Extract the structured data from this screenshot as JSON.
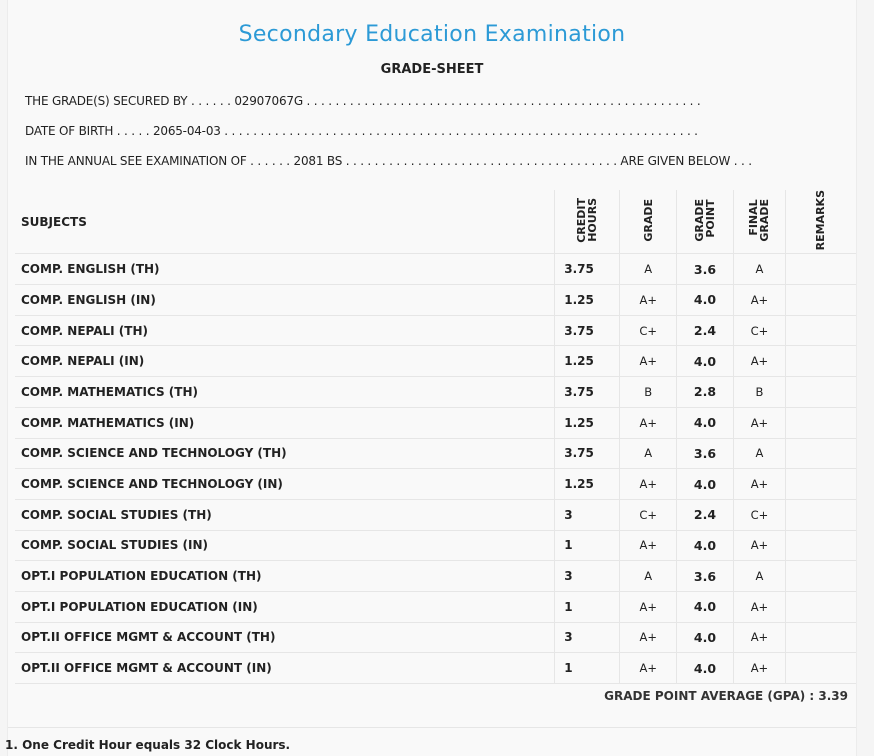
{
  "header": {
    "title": "Secondary Education Examination",
    "subtitle": "GRADE-SHEET"
  },
  "info": {
    "line1": "THE GRADE(S) SECURED BY . . . . . . 02907067G . . . . . . . . . . . . . . . . . . . . . . . . . . . . . . . . . . . . . . . . . . . . . . . . . . . . . . .",
    "line2": "DATE OF BIRTH . . . . . 2065-04-03 . . . . . . . . . . . . . . . . . . . . . . . . . . . . . . . . . . . . . . . . . . . . . . . . . . . . . . . . . . . . . . . . . .",
    "line3": "IN THE ANNUAL SEE EXAMINATION OF . . . . . . 2081 BS . . . . . . . . . . . . . . . . . . . . . . . . . . . . . . . . . . . . . . ARE GIVEN BELOW . . ."
  },
  "table": {
    "headers": {
      "subjects": "SUBJECTS",
      "credit_hours": "CREDIT\nHOURS",
      "grade": "GRADE",
      "grade_point": "GRADE\nPOINT",
      "final_grade": "FINAL\nGRADE",
      "remarks": "REMARKS"
    },
    "rows": [
      {
        "subject": "COMP. ENGLISH (TH)",
        "credit": "3.75",
        "grade": "A",
        "gp": "3.6",
        "final": "A",
        "remarks": ""
      },
      {
        "subject": "COMP. ENGLISH (IN)",
        "credit": "1.25",
        "grade": "A+",
        "gp": "4.0",
        "final": "A+",
        "remarks": ""
      },
      {
        "subject": "COMP. NEPALI (TH)",
        "credit": "3.75",
        "grade": "C+",
        "gp": "2.4",
        "final": "C+",
        "remarks": ""
      },
      {
        "subject": "COMP. NEPALI (IN)",
        "credit": "1.25",
        "grade": "A+",
        "gp": "4.0",
        "final": "A+",
        "remarks": ""
      },
      {
        "subject": "COMP. MATHEMATICS (TH)",
        "credit": "3.75",
        "grade": "B",
        "gp": "2.8",
        "final": "B",
        "remarks": ""
      },
      {
        "subject": "COMP. MATHEMATICS (IN)",
        "credit": "1.25",
        "grade": "A+",
        "gp": "4.0",
        "final": "A+",
        "remarks": ""
      },
      {
        "subject": "COMP. SCIENCE AND TECHNOLOGY (TH)",
        "credit": "3.75",
        "grade": "A",
        "gp": "3.6",
        "final": "A",
        "remarks": ""
      },
      {
        "subject": "COMP. SCIENCE AND TECHNOLOGY (IN)",
        "credit": "1.25",
        "grade": "A+",
        "gp": "4.0",
        "final": "A+",
        "remarks": ""
      },
      {
        "subject": "COMP. SOCIAL STUDIES (TH)",
        "credit": "3",
        "grade": "C+",
        "gp": "2.4",
        "final": "C+",
        "remarks": ""
      },
      {
        "subject": "COMP. SOCIAL STUDIES (IN)",
        "credit": "1",
        "grade": "A+",
        "gp": "4.0",
        "final": "A+",
        "remarks": ""
      },
      {
        "subject": "OPT.I POPULATION EDUCATION (TH)",
        "credit": "3",
        "grade": "A",
        "gp": "3.6",
        "final": "A",
        "remarks": ""
      },
      {
        "subject": "OPT.I POPULATION EDUCATION (IN)",
        "credit": "1",
        "grade": "A+",
        "gp": "4.0",
        "final": "A+",
        "remarks": ""
      },
      {
        "subject": "OPT.II OFFICE MGMT & ACCOUNT (TH)",
        "credit": "3",
        "grade": "A+",
        "gp": "4.0",
        "final": "A+",
        "remarks": ""
      },
      {
        "subject": "OPT.II OFFICE MGMT & ACCOUNT (IN)",
        "credit": "1",
        "grade": "A+",
        "gp": "4.0",
        "final": "A+",
        "remarks": ""
      }
    ]
  },
  "summary": {
    "gpa": "GRADE POINT AVERAGE (GPA) : 3.39"
  },
  "footer": {
    "note": "1. One Credit Hour equals 32 Clock Hours."
  }
}
